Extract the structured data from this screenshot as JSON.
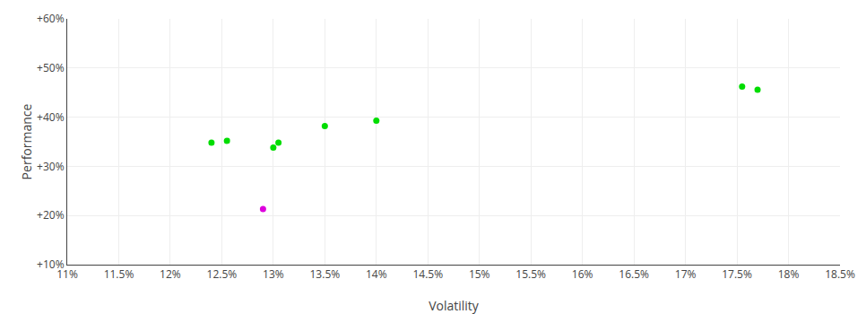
{
  "chart_data": {
    "type": "scatter",
    "xlabel": "Volatility",
    "ylabel": "Performance",
    "xlim": [
      0.11,
      0.185
    ],
    "ylim": [
      0.1,
      0.6
    ],
    "xticks": [
      {
        "value": 0.11,
        "label": "11%"
      },
      {
        "value": 0.115,
        "label": "11.5%"
      },
      {
        "value": 0.12,
        "label": "12%"
      },
      {
        "value": 0.125,
        "label": "12.5%"
      },
      {
        "value": 0.13,
        "label": "13%"
      },
      {
        "value": 0.135,
        "label": "13.5%"
      },
      {
        "value": 0.14,
        "label": "14%"
      },
      {
        "value": 0.145,
        "label": "14.5%"
      },
      {
        "value": 0.15,
        "label": "15%"
      },
      {
        "value": 0.155,
        "label": "15.5%"
      },
      {
        "value": 0.16,
        "label": "16%"
      },
      {
        "value": 0.165,
        "label": "16.5%"
      },
      {
        "value": 0.17,
        "label": "17%"
      },
      {
        "value": 0.175,
        "label": "17.5%"
      },
      {
        "value": 0.18,
        "label": "18%"
      },
      {
        "value": 0.185,
        "label": "18.5%"
      }
    ],
    "yticks": [
      {
        "value": 0.1,
        "label": "+10%"
      },
      {
        "value": 0.2,
        "label": "+20%"
      },
      {
        "value": 0.3,
        "label": "+30%"
      },
      {
        "value": 0.4,
        "label": "+40%"
      },
      {
        "value": 0.5,
        "label": "+50%"
      },
      {
        "value": 0.6,
        "label": "+60%"
      }
    ],
    "grid": true,
    "series": [
      {
        "color": "#00dd00",
        "x": [
          0.124,
          0.1255,
          0.13,
          0.1305,
          0.135,
          0.14,
          0.1755,
          0.177
        ],
        "values": [
          0.348,
          0.352,
          0.338,
          0.348,
          0.382,
          0.393,
          0.462,
          0.456
        ]
      },
      {
        "color": "#dd00dd",
        "x": [
          0.129
        ],
        "values": [
          0.213
        ]
      }
    ]
  }
}
